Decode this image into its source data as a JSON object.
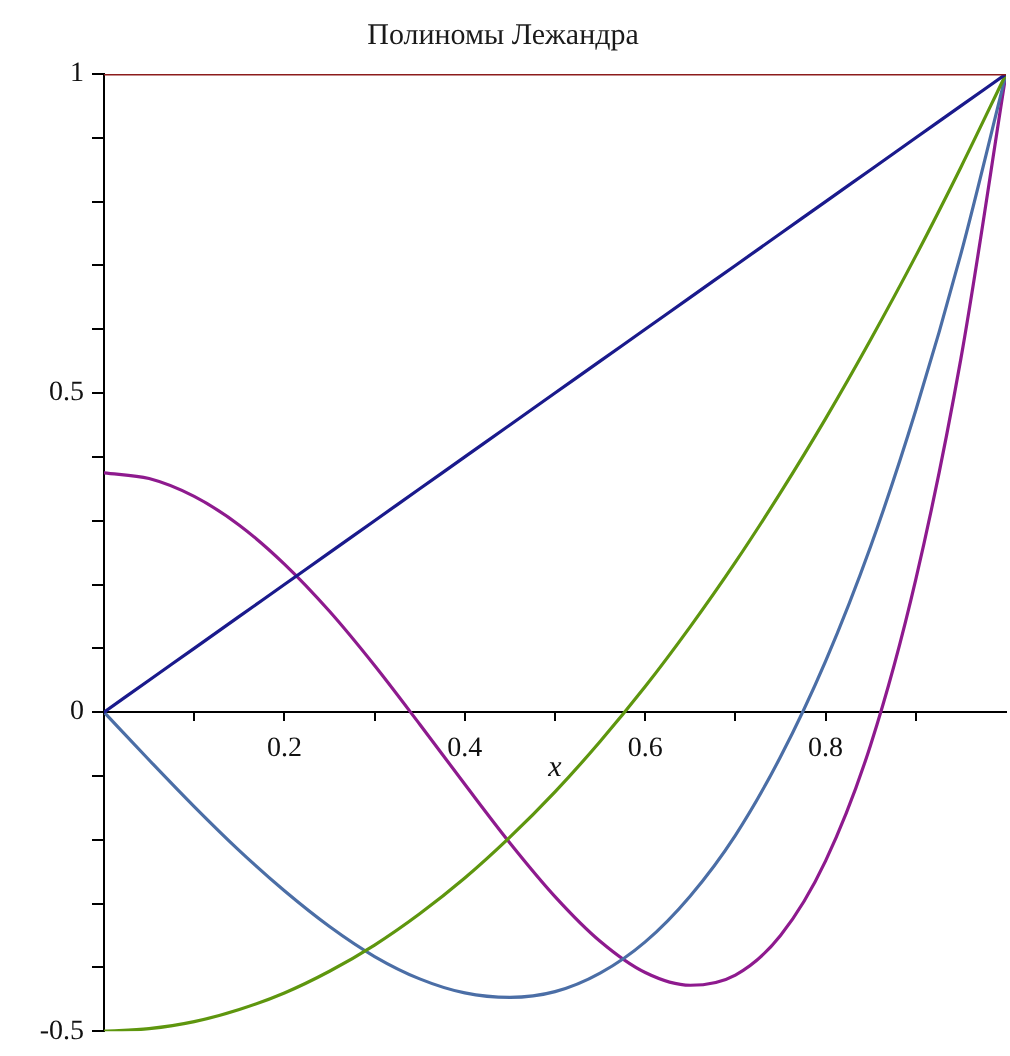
{
  "chart_data": {
    "type": "line",
    "title": "Полиномы Лежандра",
    "xlabel": "x",
    "x": [
      0,
      0.05,
      0.1,
      0.15,
      0.2,
      0.25,
      0.3,
      0.35,
      0.4,
      0.45,
      0.5,
      0.55,
      0.6,
      0.65,
      0.7,
      0.75,
      0.8,
      0.85,
      0.9,
      0.95,
      1
    ],
    "series": [
      {
        "color": "#8c1c1c",
        "x": [
          0,
          1
        ],
        "values": [
          1,
          1
        ]
      },
      {
        "color": "#1a1a8c",
        "values": [
          0,
          0.05,
          0.1,
          0.15,
          0.2,
          0.25,
          0.3,
          0.35,
          0.4,
          0.45,
          0.5,
          0.55,
          0.6,
          0.65,
          0.7,
          0.75,
          0.8,
          0.85,
          0.9,
          0.95,
          1
        ]
      },
      {
        "color": "#5e960e",
        "values": [
          -0.5,
          -0.496,
          -0.485,
          -0.466,
          -0.44,
          -0.406,
          -0.365,
          -0.316,
          -0.26,
          -0.196,
          -0.125,
          -0.046,
          0.04,
          0.134,
          0.235,
          0.344,
          0.46,
          0.584,
          0.715,
          0.854,
          1
        ]
      },
      {
        "color": "#4b6ea6",
        "values": [
          0,
          -0.075,
          -0.148,
          -0.217,
          -0.28,
          -0.336,
          -0.383,
          -0.418,
          -0.44,
          -0.447,
          -0.438,
          -0.409,
          -0.36,
          -0.288,
          -0.193,
          -0.07,
          0.08,
          0.26,
          0.473,
          0.718,
          1
        ]
      },
      {
        "color": "#8e1a8e",
        "values": [
          0.375,
          0.366,
          0.338,
          0.293,
          0.232,
          0.158,
          0.073,
          -0.019,
          -0.113,
          -0.205,
          -0.289,
          -0.359,
          -0.408,
          -0.428,
          -0.412,
          -0.35,
          -0.233,
          -0.051,
          0.208,
          0.554,
          1
        ]
      }
    ],
    "xlim": [
      0,
      1
    ],
    "ylim": [
      -0.5,
      1
    ],
    "xticks": [
      {
        "value": 0.1,
        "label": null
      },
      0.2,
      {
        "value": 0.3,
        "label": null
      },
      0.4,
      {
        "value": 0.5,
        "label": null
      },
      0.6,
      {
        "value": 0.7,
        "label": null
      },
      0.8,
      {
        "value": 0.9,
        "label": null
      }
    ],
    "yticks": [
      -0.5,
      {
        "value": -0.4,
        "label": null
      },
      {
        "value": -0.3,
        "label": null
      },
      {
        "value": -0.2,
        "label": null
      },
      {
        "value": -0.1,
        "label": null
      },
      0,
      {
        "value": 0.1,
        "label": null
      },
      {
        "value": 0.2,
        "label": null
      },
      {
        "value": 0.3,
        "label": null
      },
      {
        "value": 0.4,
        "label": null
      },
      0.5,
      {
        "value": 0.6,
        "label": null
      },
      {
        "value": 0.7,
        "label": null
      },
      {
        "value": 0.8,
        "label": null
      },
      {
        "value": 0.9,
        "label": null
      },
      1
    ]
  }
}
